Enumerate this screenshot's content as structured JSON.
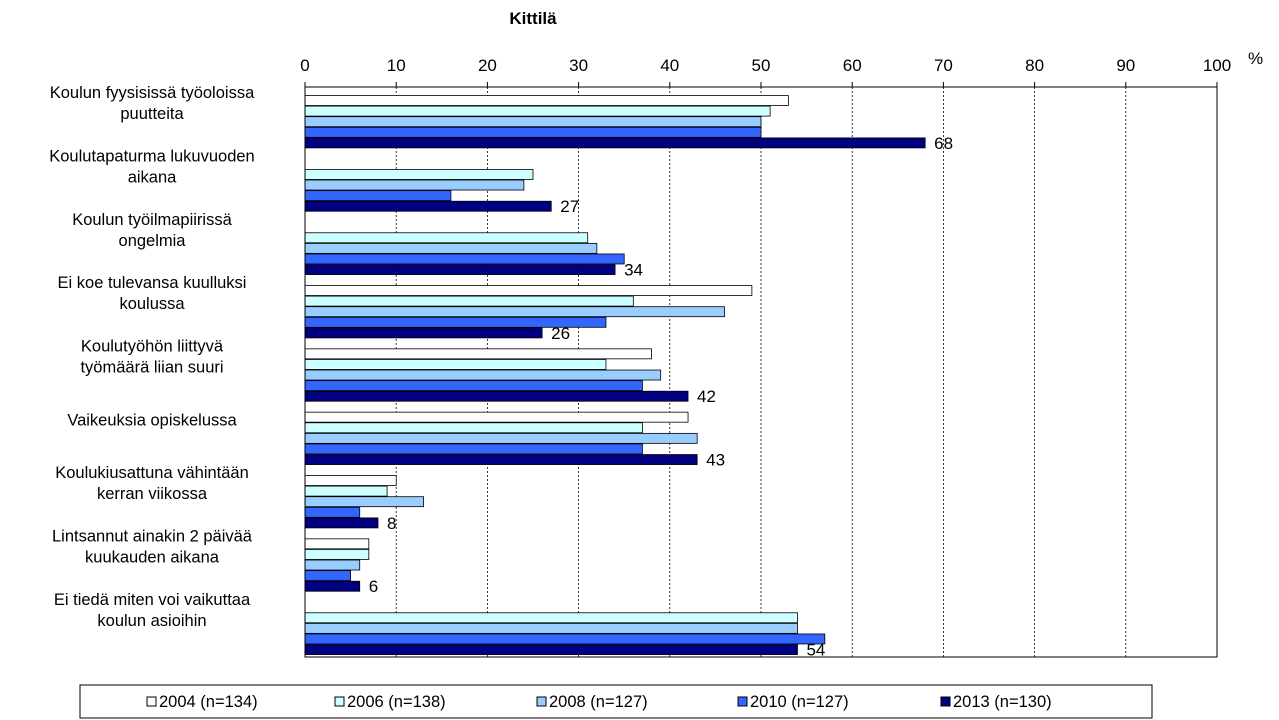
{
  "chart_data": {
    "type": "bar",
    "orientation": "horizontal",
    "title": "Kittilä",
    "unit_label": "%",
    "xlim": [
      0,
      100
    ],
    "x_ticks": [
      0,
      10,
      20,
      30,
      40,
      50,
      60,
      70,
      80,
      90,
      100
    ],
    "grid": "vertical dashed",
    "legend_position": "bottom",
    "categories": [
      [
        "Koulun fyysisissä työoloissa",
        "puutteita"
      ],
      [
        "Koulutapaturma lukuvuoden",
        "aikana"
      ],
      [
        "Koulun työilmapiirissä",
        "ongelmia"
      ],
      [
        "Ei koe tulevansa kuulluksi",
        "koulussa"
      ],
      [
        "Koulutyöhön liittyvä",
        "työmäärä liian suuri"
      ],
      [
        "Vaikeuksia opiskelussa"
      ],
      [
        "Koulukiusattuna vähintään",
        "kerran viikossa"
      ],
      [
        "Lintsannut ainakin 2 päivää",
        "kuukauden aikana"
      ],
      [
        "Ei tiedä miten voi vaikuttaa",
        "koulun asioihin"
      ]
    ],
    "series": [
      {
        "name": "2004 (n=134)",
        "color": "#ffffff",
        "values": [
          53,
          null,
          null,
          49,
          38,
          42,
          10,
          7,
          null
        ]
      },
      {
        "name": "2006 (n=138)",
        "color": "#ccffff",
        "values": [
          51,
          25,
          31,
          36,
          33,
          37,
          9,
          7,
          54
        ]
      },
      {
        "name": "2008 (n=127)",
        "color": "#99ccff",
        "values": [
          50,
          24,
          32,
          46,
          39,
          43,
          13,
          6,
          54
        ]
      },
      {
        "name": "2010 (n=127)",
        "color": "#3366ff",
        "values": [
          50,
          16,
          35,
          33,
          37,
          37,
          6,
          5,
          57
        ]
      },
      {
        "name": "2013 (n=130)",
        "color": "#000080",
        "values": [
          68,
          27,
          34,
          26,
          42,
          43,
          8,
          6,
          54
        ]
      }
    ],
    "data_labels": [
      "68",
      "27",
      "34",
      "26",
      "42",
      "43",
      "8",
      "6",
      "54"
    ]
  }
}
